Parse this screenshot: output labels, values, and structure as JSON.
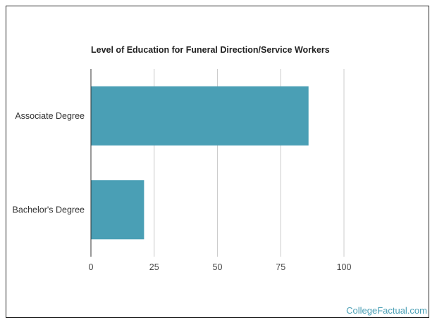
{
  "chart_data": {
    "type": "bar",
    "orientation": "horizontal",
    "title": "Level of Education for Funeral Direction/Service Workers",
    "categories": [
      "Associate Degree",
      "Bachelor's Degree"
    ],
    "values": [
      86,
      21
    ],
    "xlim": [
      0,
      100
    ],
    "xticks": [
      "0",
      "25",
      "50",
      "75",
      "100"
    ],
    "grid": true,
    "bar_color": "#4a9fb5"
  },
  "watermark": "CollegeFactual.com"
}
